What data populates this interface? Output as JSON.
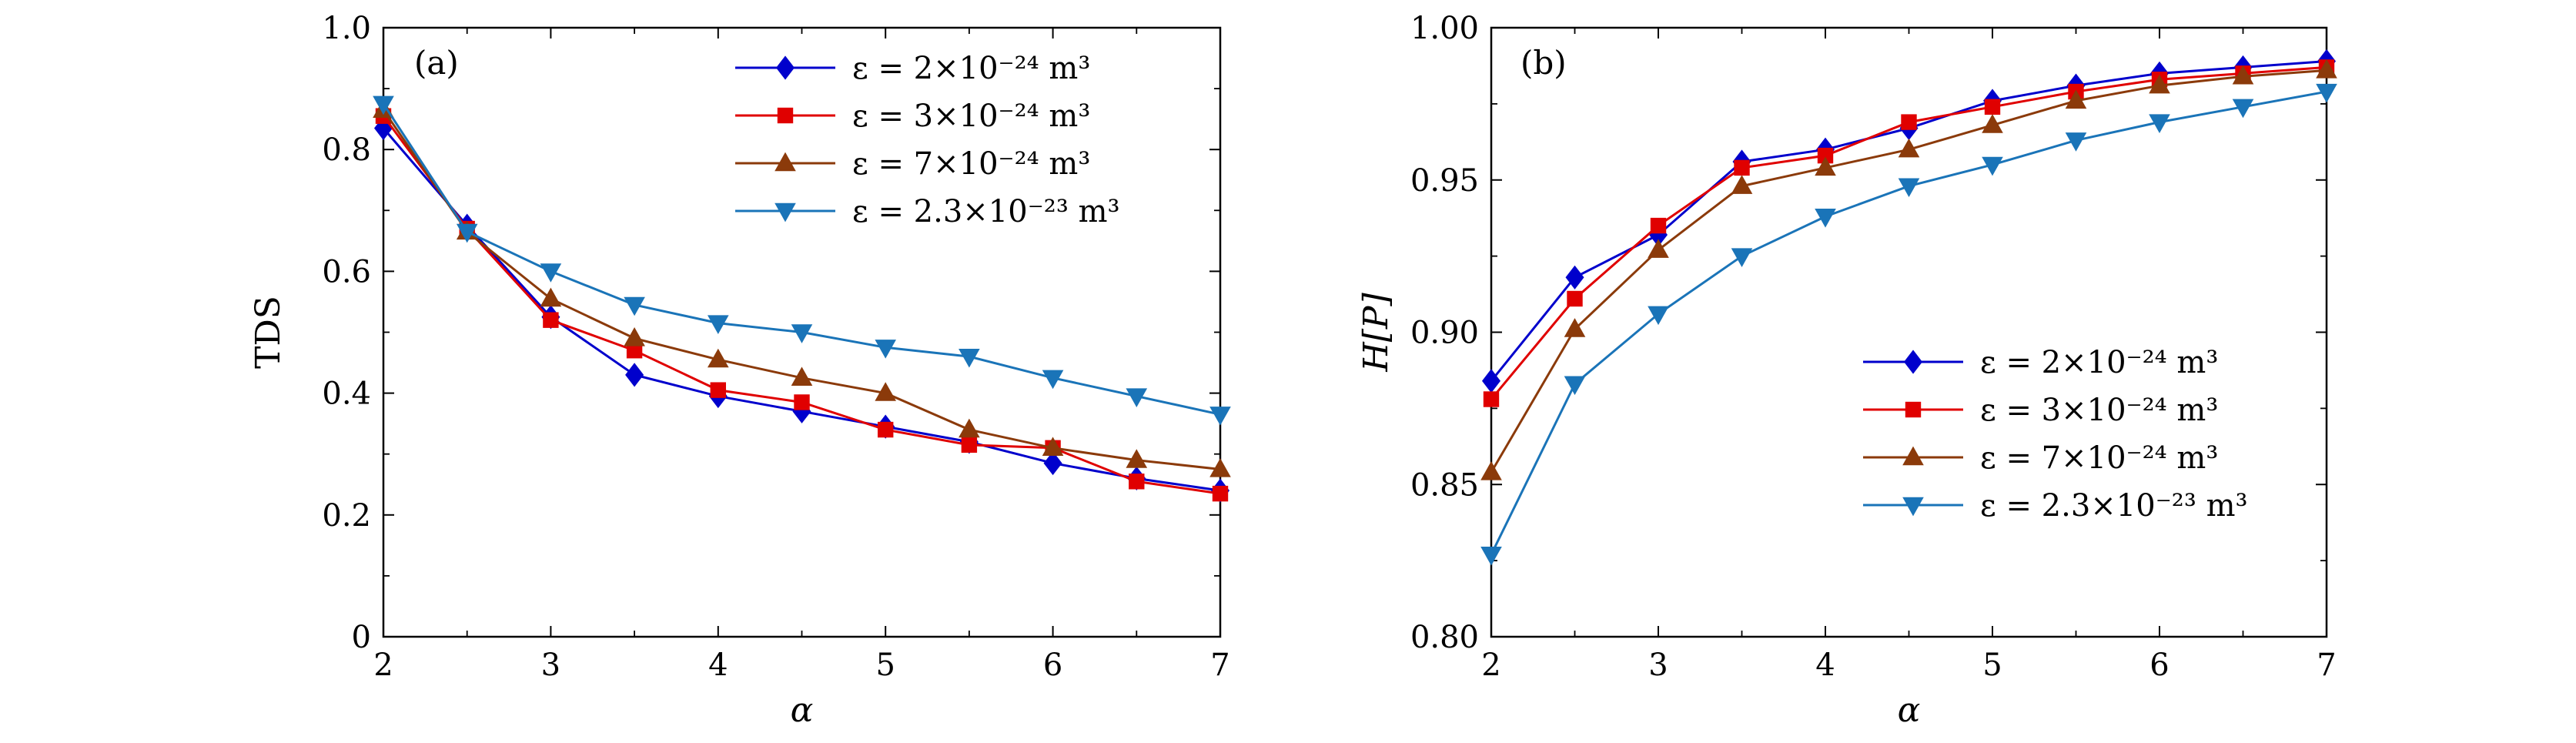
{
  "chart_data": [
    {
      "type": "line",
      "panel_label": "(a)",
      "xlabel": "α",
      "ylabel": "TDS",
      "xlim": [
        2,
        7
      ],
      "ylim": [
        0,
        1.0
      ],
      "xticks": [
        "2",
        "3",
        "4",
        "5",
        "6",
        "7"
      ],
      "yticks": [
        "0",
        "0.2",
        "0.4",
        "0.6",
        "0.8",
        "1.0"
      ],
      "legend_position": "top-right",
      "grid": false,
      "x": [
        2,
        2.5,
        3,
        3.5,
        4,
        4.5,
        5,
        5.5,
        6,
        6.5,
        7
      ],
      "series": [
        {
          "name": "ε = 2×10⁻²⁴ m³",
          "color": "#0000cc",
          "marker": "diamond",
          "values": [
            0.835,
            0.675,
            0.525,
            0.43,
            0.395,
            0.37,
            0.345,
            0.32,
            0.285,
            0.26,
            0.24
          ]
        },
        {
          "name": "ε = 3×10⁻²⁴ m³",
          "color": "#e00000",
          "marker": "square",
          "values": [
            0.855,
            0.67,
            0.52,
            0.47,
            0.405,
            0.385,
            0.34,
            0.315,
            0.31,
            0.255,
            0.235
          ]
        },
        {
          "name": "ε = 7×10⁻²⁴ m³",
          "color": "#8b3a0a",
          "marker": "triangle-up",
          "values": [
            0.865,
            0.665,
            0.555,
            0.49,
            0.455,
            0.425,
            0.4,
            0.34,
            0.31,
            0.29,
            0.275
          ]
        },
        {
          "name": "ε = 2.3×10⁻²³ m³",
          "color": "#1a74b8",
          "marker": "triangle-down",
          "values": [
            0.875,
            0.665,
            0.6,
            0.545,
            0.515,
            0.5,
            0.475,
            0.46,
            0.425,
            0.395,
            0.365
          ]
        }
      ]
    },
    {
      "type": "line",
      "panel_label": "(b)",
      "xlabel": "α",
      "ylabel": "H[P]",
      "xlim": [
        2,
        7
      ],
      "ylim": [
        0.8,
        1.0
      ],
      "xticks": [
        "2",
        "3",
        "4",
        "5",
        "6",
        "7"
      ],
      "yticks": [
        "0.80",
        "0.85",
        "0.90",
        "0.95",
        "1.00"
      ],
      "legend_position": "lower-right",
      "grid": false,
      "x": [
        2,
        2.5,
        3,
        3.5,
        4,
        4.5,
        5,
        5.5,
        6,
        6.5,
        7
      ],
      "series": [
        {
          "name": "ε = 2×10⁻²⁴ m³",
          "color": "#0000cc",
          "marker": "diamond",
          "values": [
            0.884,
            0.918,
            0.932,
            0.956,
            0.96,
            0.967,
            0.976,
            0.981,
            0.985,
            0.987,
            0.989
          ]
        },
        {
          "name": "ε = 3×10⁻²⁴ m³",
          "color": "#e00000",
          "marker": "square",
          "values": [
            0.878,
            0.911,
            0.935,
            0.954,
            0.958,
            0.969,
            0.974,
            0.979,
            0.983,
            0.985,
            0.987
          ]
        },
        {
          "name": "ε = 7×10⁻²⁴ m³",
          "color": "#8b3a0a",
          "marker": "triangle-up",
          "values": [
            0.854,
            0.901,
            0.927,
            0.948,
            0.954,
            0.96,
            0.968,
            0.976,
            0.981,
            0.984,
            0.986
          ]
        },
        {
          "name": "ε = 2.3×10⁻²³ m³",
          "color": "#1a74b8",
          "marker": "triangle-down",
          "values": [
            0.827,
            0.883,
            0.906,
            0.925,
            0.938,
            0.948,
            0.955,
            0.963,
            0.969,
            0.974,
            0.979
          ]
        }
      ]
    }
  ]
}
